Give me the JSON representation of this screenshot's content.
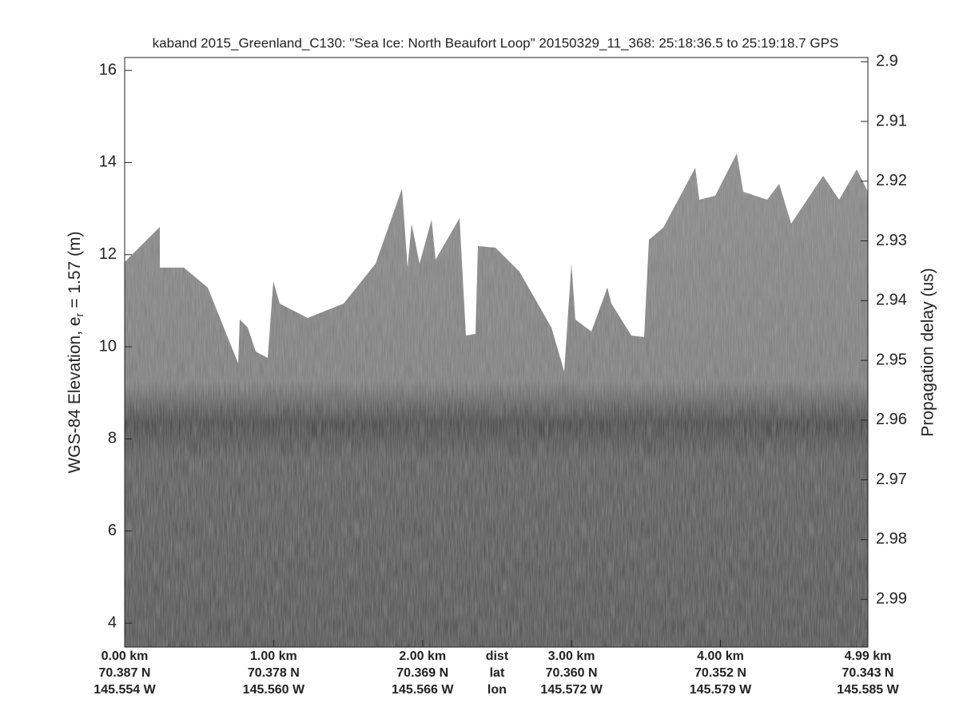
{
  "chart_data": {
    "type": "echogram",
    "title": "kaband 2015_Greenland_C130: \"Sea Ice: North Beaufort Loop\"  20150329_11_368: 25:18:36.5 to 25:19:18.7 GPS",
    "ylabel": {
      "text": "WGS-84 Elevation, e",
      "subscript": "r",
      "suffix": "= 1.57 (m)"
    },
    "y2label": "Propagation delay (us)",
    "ylim": [
      3.48,
      16.28
    ],
    "yticks": [
      4,
      6,
      8,
      10,
      12,
      14,
      16
    ],
    "y2lim": [
      2.8993,
      2.998
    ],
    "y2ticks": [
      2.9,
      2.91,
      2.92,
      2.93,
      2.94,
      2.95,
      2.96,
      2.97,
      2.98,
      2.99
    ],
    "xlim": [
      0,
      4.99
    ],
    "xticks": [
      {
        "value": 0,
        "label": "0.00 km"
      },
      {
        "value": 1,
        "label": "1.00 km"
      },
      {
        "value": 2,
        "label": "2.00 km"
      },
      {
        "value": 3,
        "label": "3.00 km"
      },
      {
        "value": 4,
        "label": "4.00 km"
      },
      {
        "value": 4.99,
        "label": "4.99 km"
      }
    ],
    "lat_labels": [
      "70.387 N",
      "70.378 N",
      "70.369 N",
      "70.360 N",
      "70.352 N",
      "70.343 N"
    ],
    "lon_labels": [
      "145.554 W",
      "145.560 W",
      "145.566 W",
      "145.572 W",
      "145.579 W",
      "145.585 W"
    ],
    "row_labels": [
      "dist",
      "lat",
      "lon"
    ]
  }
}
